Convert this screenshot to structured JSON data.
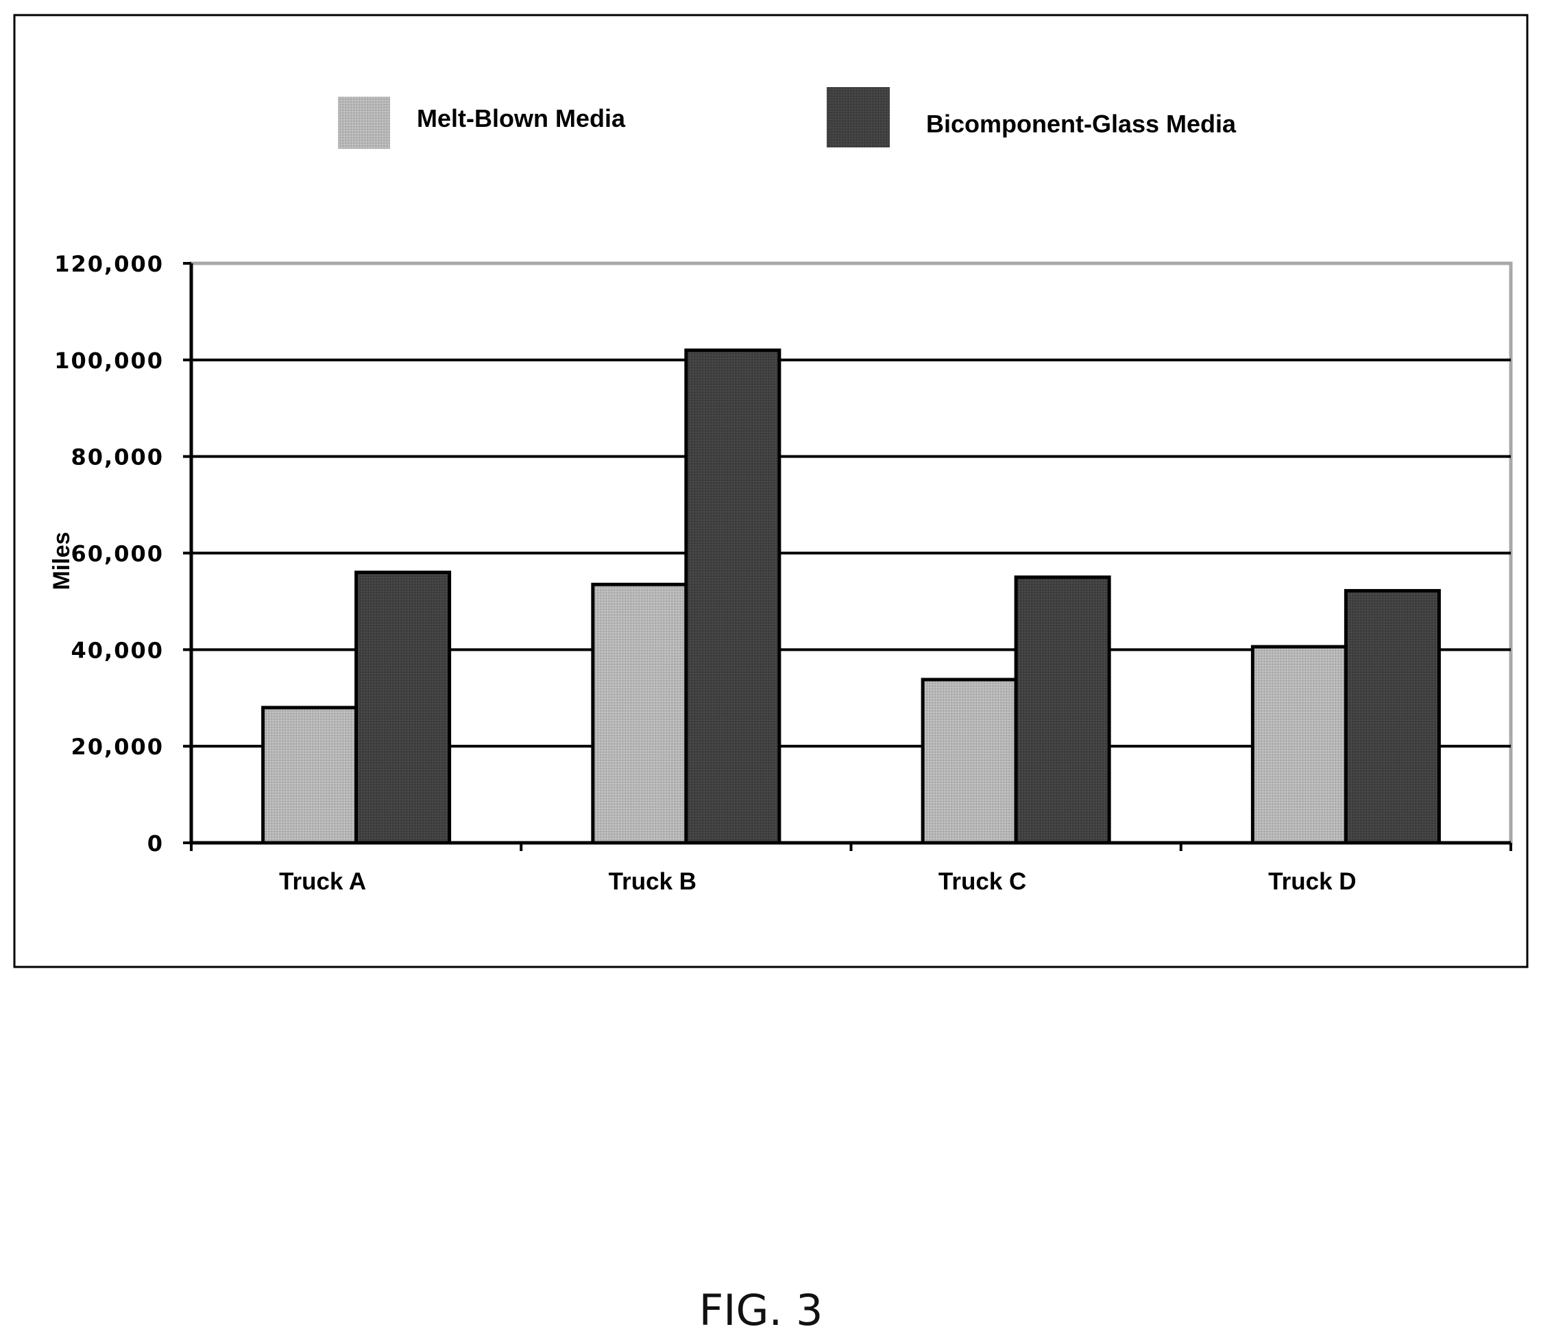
{
  "chart_data": {
    "type": "bar",
    "categories": [
      "Truck A",
      "Truck B",
      "Truck C",
      "Truck D"
    ],
    "series": [
      {
        "name": "Melt-Blown Media",
        "color": "#b4b4b4",
        "values": [
          28000,
          53500,
          33800,
          40600
        ]
      },
      {
        "name": "Bicomponent-Glass Media",
        "color": "#404040",
        "values": [
          56000,
          102000,
          55000,
          52200
        ]
      }
    ],
    "xlabel": "",
    "ylabel": "Miles",
    "ylim": [
      0,
      120000
    ],
    "yticks": [
      0,
      20000,
      40000,
      60000,
      80000,
      100000,
      120000
    ],
    "ytick_labels": [
      "0",
      "20,000",
      "40,000",
      "60,000",
      "80,000",
      "100,000",
      "120,000"
    ],
    "grid": true,
    "legend_position": "top"
  },
  "caption": "FIG. 3"
}
